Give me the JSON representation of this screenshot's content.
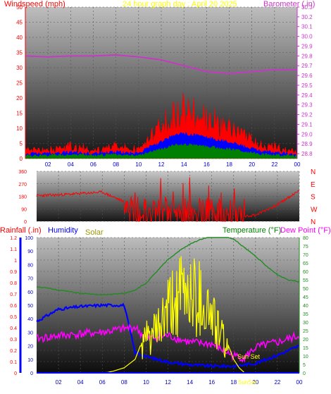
{
  "header": {
    "left_label": "Windspeed (mph)",
    "center_label": "24 hour graph day : April 20 2025",
    "right_label": "Barometer (.in)"
  },
  "bottom_header": {
    "rainfall_label": "Rainfall (.in)",
    "humidity_label": "Humidity",
    "solar_label": "Solar",
    "temperature_label": "Temperature (°F)",
    "dewpoint_label": "Dew Point (°F)"
  },
  "annotations": {
    "sunset": "Sun Set",
    "sunrise_axis": "SunSet"
  },
  "colors": {
    "windspeed": "#ff0000",
    "wind_avg": "#0000ff",
    "wind_gust_base": "#008000",
    "barometer": "#cc33cc",
    "direction": "#ff0000",
    "rainfall": "#0000ff",
    "humidity": "#0000ff",
    "solar": "#ffff00",
    "temperature": "#228b22",
    "dewpoint": "#ff00ff",
    "axis_text_left": "#ff0000",
    "axis_text_right": "#cc33cc",
    "temp_axis": "#228b22"
  },
  "chart_data": [
    {
      "type": "line",
      "title": "24 hour graph day : April 20 2025",
      "x_ticks": [
        "02",
        "04",
        "06",
        "08",
        "10",
        "12",
        "14",
        "16",
        "18",
        "20",
        "22",
        "00"
      ],
      "y_left_label": "Windspeed (mph)",
      "y_left_ticks": [
        0,
        5,
        10,
        15,
        20,
        25,
        30,
        35,
        40,
        45,
        50
      ],
      "ylim_left": [
        0,
        50
      ],
      "y_right_label": "Barometer (.in)",
      "y_right_ticks": [
        28.8,
        28.9,
        29.0,
        29.1,
        29.2,
        29.3,
        29.4,
        29.5,
        29.6,
        29.7,
        29.8,
        29.9,
        30.0,
        30.1,
        30.2,
        30.3
      ],
      "ylim_right": [
        28.75,
        30.3
      ],
      "series": [
        {
          "name": "Barometer",
          "hours": [
            0,
            2,
            4,
            6,
            8,
            10,
            12,
            14,
            16,
            18,
            20,
            22,
            24
          ],
          "values": [
            29.8,
            29.79,
            29.8,
            29.8,
            29.81,
            29.79,
            29.76,
            29.7,
            29.64,
            29.62,
            29.64,
            29.66,
            29.66
          ]
        },
        {
          "name": "Windspeed",
          "hours": [
            0,
            2,
            4,
            6,
            8,
            10,
            11,
            12,
            13,
            14,
            15,
            16,
            17,
            18,
            19,
            20,
            21,
            22,
            23,
            24
          ],
          "values": [
            2,
            2,
            3,
            2,
            3,
            2,
            6,
            9,
            13,
            14,
            13,
            12,
            10,
            9,
            7,
            5,
            3,
            3,
            2,
            1
          ]
        }
      ]
    },
    {
      "type": "line",
      "x_ticks": [
        "02",
        "04",
        "06",
        "08",
        "10",
        "12",
        "14",
        "16",
        "18",
        "20",
        "22",
        "00"
      ],
      "y_left_ticks": [
        0,
        90,
        180,
        270,
        360
      ],
      "ylim_left": [
        0,
        360
      ],
      "y_right_ticks": [
        "N",
        "W",
        "S",
        "E",
        "N"
      ],
      "series": [
        {
          "name": "Direction",
          "hours": [
            0,
            2,
            4,
            6,
            8,
            10,
            12,
            14,
            16,
            18,
            20,
            22,
            24
          ],
          "values": [
            185,
            190,
            200,
            210,
            140,
            40,
            60,
            50,
            40,
            30,
            45,
            120,
            220
          ]
        }
      ]
    },
    {
      "type": "line",
      "x_ticks": [
        "02",
        "04",
        "06",
        "08",
        "10",
        "12",
        "14",
        "16",
        "18",
        "20",
        "22",
        "00"
      ],
      "rain_ticks": [
        0,
        0.1,
        0.2,
        0.3,
        0.4,
        0.5,
        0.6,
        0.7,
        0.8,
        0.9,
        1,
        1.1,
        1.2
      ],
      "ylim_rain": [
        0,
        1.2
      ],
      "humidity_ticks": [
        0,
        10,
        20,
        30,
        40,
        50,
        60,
        70,
        80,
        90,
        100
      ],
      "ylim_humidity": [
        0,
        100
      ],
      "temp_ticks": [
        0,
        5,
        10,
        15,
        20,
        25,
        30,
        35,
        40,
        45,
        50,
        55,
        60,
        65,
        70,
        75,
        80
      ],
      "ylim_temp": [
        0,
        80
      ],
      "series": [
        {
          "name": "Temperature",
          "hours": [
            0,
            2,
            4,
            6,
            8,
            9,
            10,
            11,
            12,
            13,
            14,
            15,
            16,
            17,
            18,
            19,
            20,
            21,
            22,
            23,
            24
          ],
          "values": [
            51,
            49,
            47,
            46,
            47,
            49,
            53,
            60,
            67,
            72,
            76,
            79,
            81,
            81,
            79,
            74,
            69,
            63,
            58,
            55,
            54
          ]
        },
        {
          "name": "Humidity",
          "hours": [
            0,
            2,
            4,
            6,
            7,
            8,
            9,
            10,
            11,
            12,
            14,
            16,
            18,
            20,
            22,
            24
          ],
          "values": [
            38,
            47,
            49,
            50,
            50,
            50,
            15,
            12,
            10,
            8,
            6,
            5,
            5,
            7,
            13,
            20
          ]
        },
        {
          "name": "Dew Point",
          "hours": [
            0,
            2,
            4,
            6,
            8,
            9,
            10,
            12,
            14,
            16,
            18,
            19,
            20,
            22,
            24
          ],
          "values": [
            20,
            22,
            23,
            24,
            26,
            27,
            20,
            22,
            18,
            17,
            10,
            9,
            15,
            18,
            22
          ]
        },
        {
          "name": "Solar",
          "hours": [
            0,
            6,
            6.5,
            7,
            8,
            9,
            10,
            11,
            12,
            13,
            14,
            15,
            16,
            17,
            18,
            18.5,
            19,
            24
          ],
          "values": [
            0,
            0,
            0.3,
            1,
            3,
            8,
            25,
            30,
            45,
            55,
            60,
            55,
            42,
            25,
            8,
            3,
            0,
            0
          ]
        },
        {
          "name": "Rainfall",
          "hours": [
            0,
            24
          ],
          "values": [
            0,
            0
          ]
        }
      ]
    }
  ]
}
